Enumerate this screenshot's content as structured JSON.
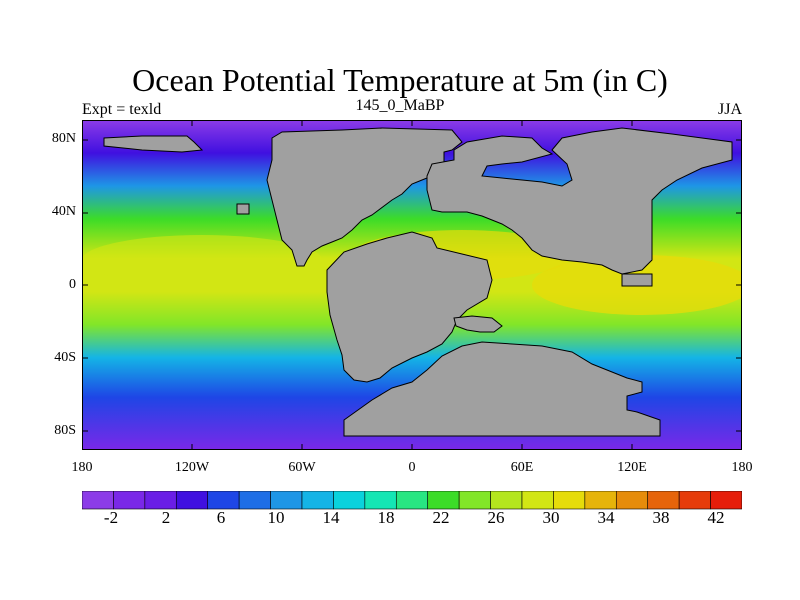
{
  "header": {
    "title": "Ocean Potential Temperature at 5m (in C)",
    "left": "Expt = texld",
    "center": "145_0_MaBP",
    "right": "JJA"
  },
  "axes": {
    "lat_labels": [
      "80N",
      "40N",
      "0",
      "40S",
      "80S"
    ],
    "lon_labels": [
      "180",
      "120W",
      "60W",
      "0",
      "60E",
      "120E",
      "180"
    ]
  },
  "colorbar": {
    "labels": [
      "-2",
      "2",
      "6",
      "10",
      "14",
      "18",
      "22",
      "26",
      "30",
      "34",
      "38",
      "42"
    ],
    "colors": [
      "#8c3ce8",
      "#7a28e8",
      "#6a1ee6",
      "#4010e0",
      "#1e46e6",
      "#1e6ee6",
      "#1e96e6",
      "#14b4e6",
      "#0ad2dc",
      "#14e6b4",
      "#28e682",
      "#3cdc28",
      "#82e628",
      "#b4e61e",
      "#d2e614",
      "#e6dc0a",
      "#e6b40a",
      "#e68c0a",
      "#e6640a",
      "#e63c0a",
      "#e61e0a"
    ],
    "land_color": "#a0a0a0"
  }
}
